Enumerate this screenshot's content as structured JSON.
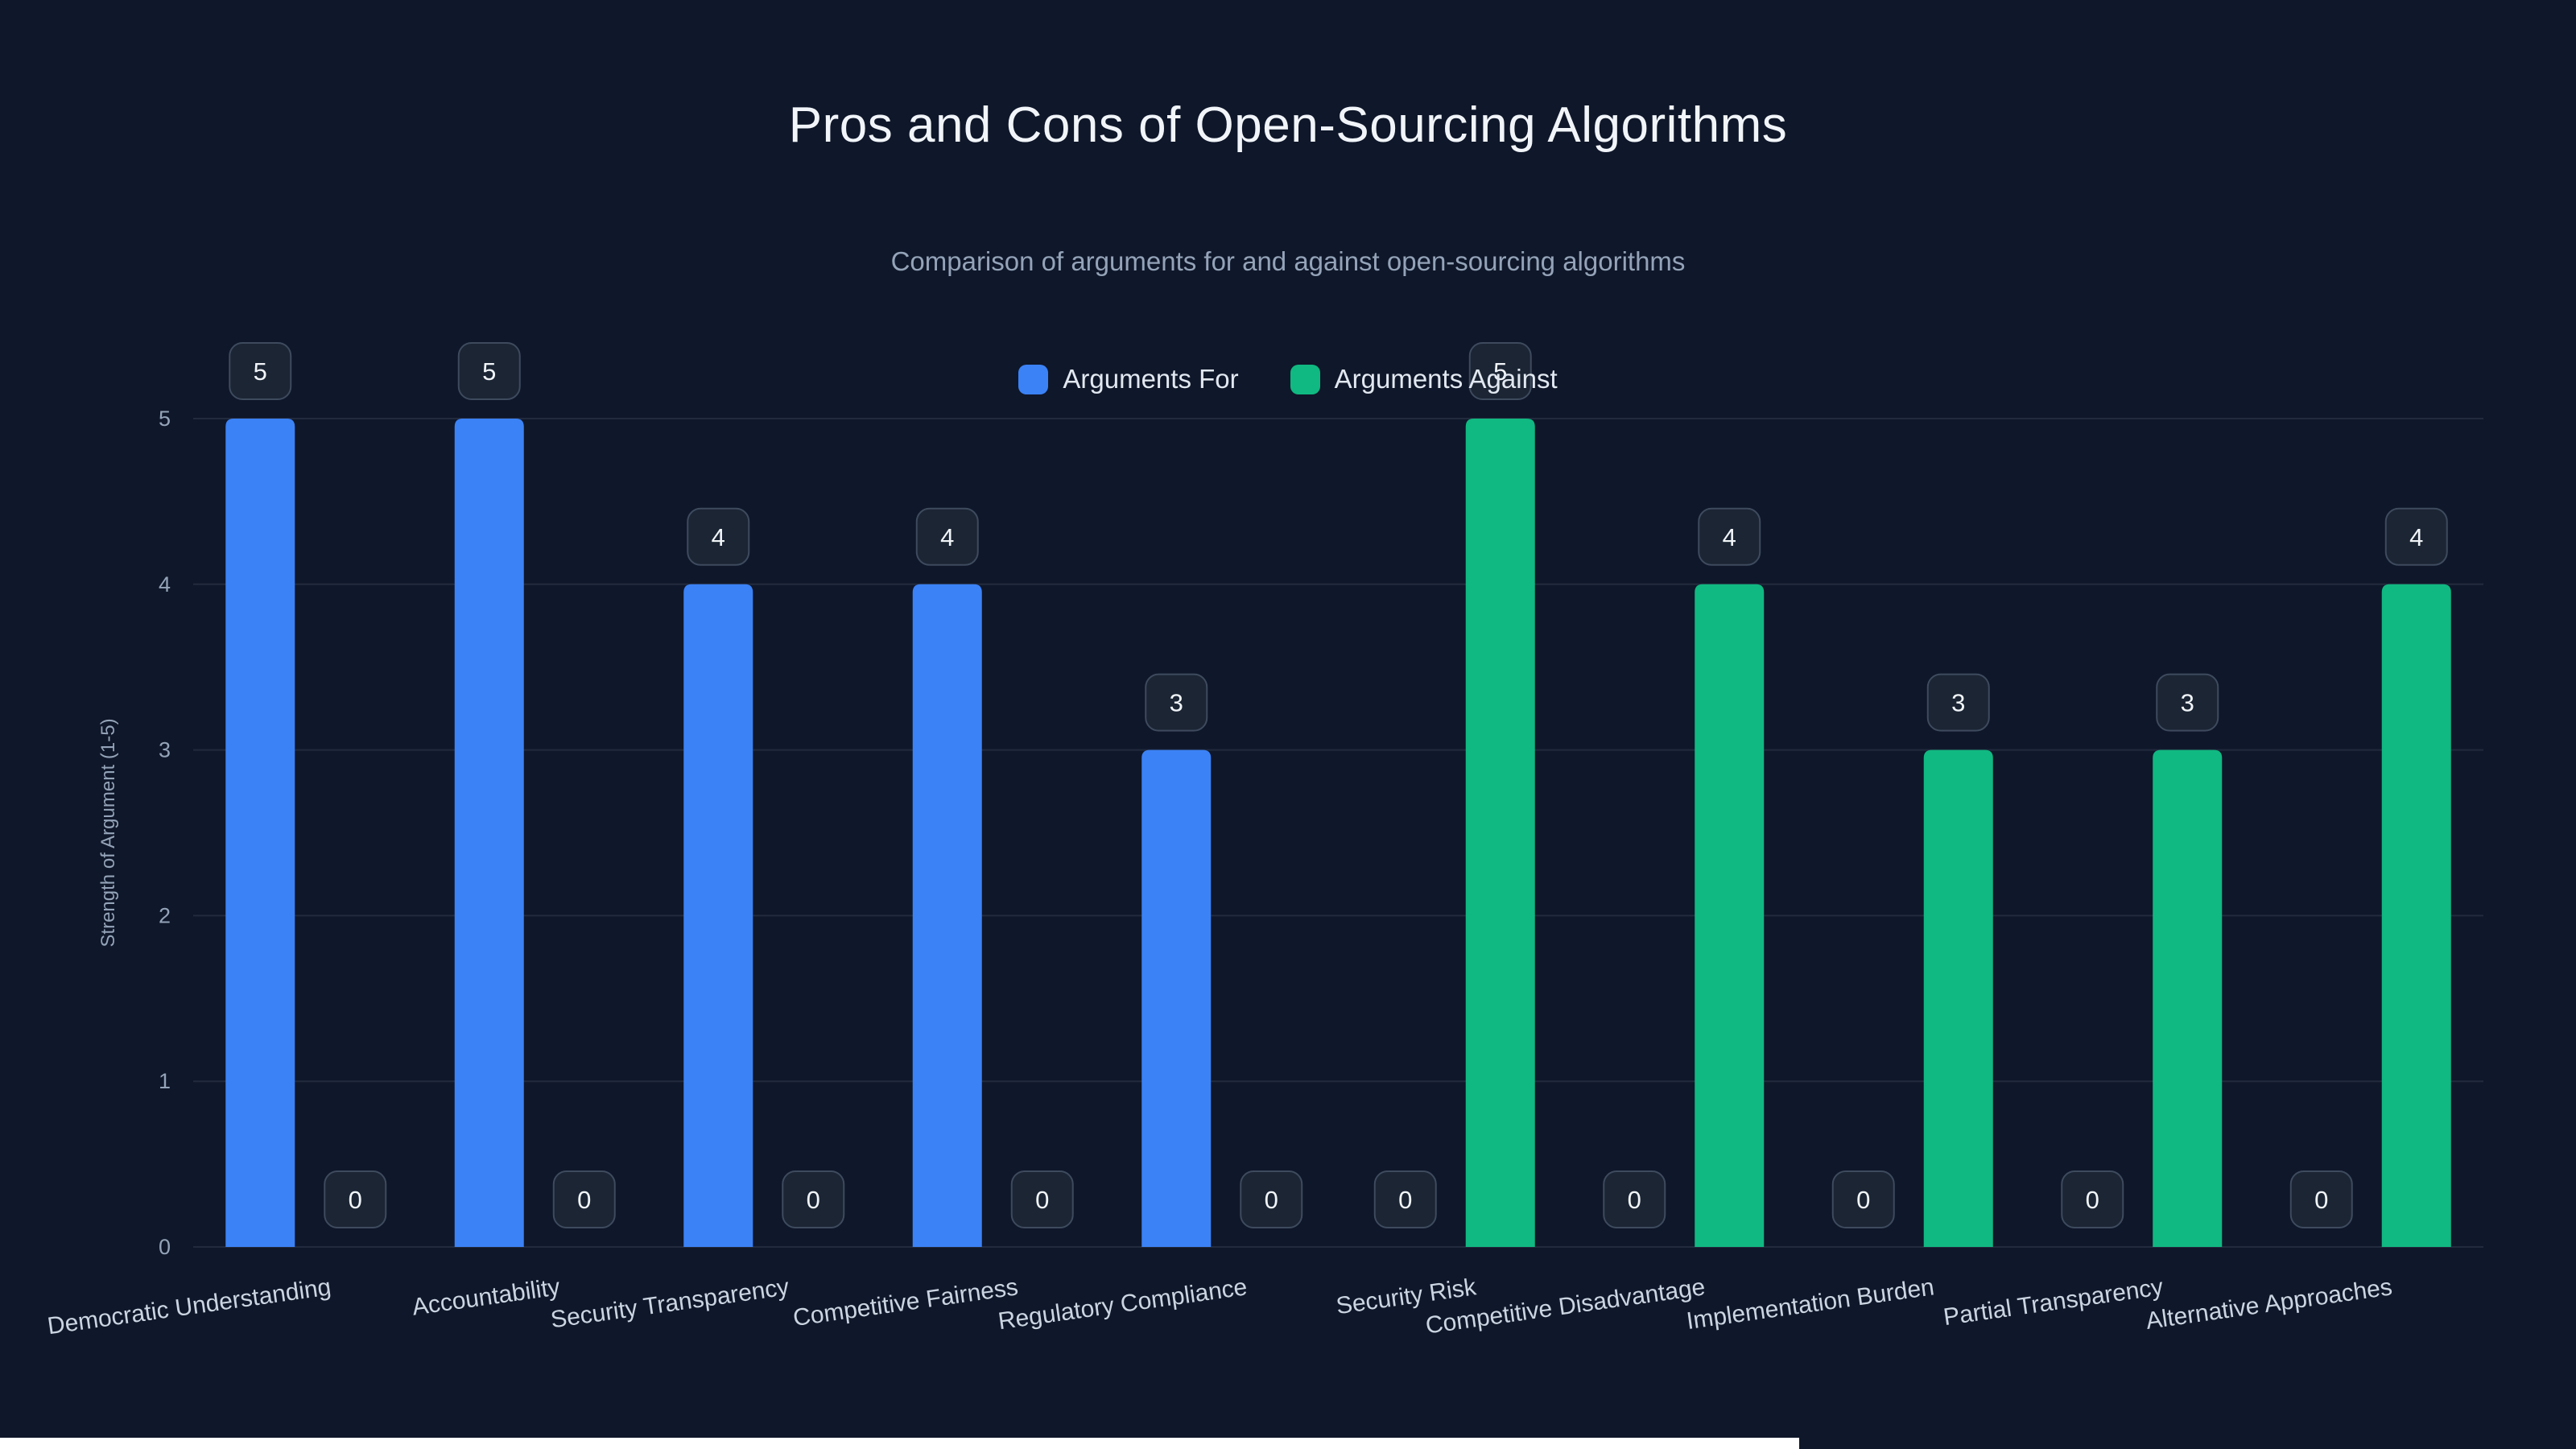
{
  "page": {
    "background": "#0f172a"
  },
  "chart_data": {
    "type": "bar",
    "title": "Pros and Cons of Open-Sourcing Algorithms",
    "subtitle": "Comparison of arguments for and against open-sourcing algorithms",
    "ylabel": "Strength of Argument (1-5)",
    "ylim": [
      0,
      5
    ],
    "yticks": [
      0,
      1,
      2,
      3,
      4,
      5
    ],
    "grid": true,
    "legend_position": "top",
    "value_labels": true,
    "categories": [
      "Democratic Understanding",
      "Accountability",
      "Security Transparency",
      "Competitive Fairness",
      "Regulatory Compliance",
      "Security Risk",
      "Competitive Disadvantage",
      "Implementation Burden",
      "Partial Transparency",
      "Alternative Approaches"
    ],
    "series": [
      {
        "name": "Arguments For",
        "color": "#3b82f6",
        "values": [
          5,
          5,
          4,
          4,
          3,
          0,
          0,
          0,
          0,
          0
        ]
      },
      {
        "name": "Arguments Against",
        "color": "#10b981",
        "values": [
          0,
          0,
          0,
          0,
          0,
          5,
          4,
          3,
          3,
          4
        ]
      }
    ]
  }
}
